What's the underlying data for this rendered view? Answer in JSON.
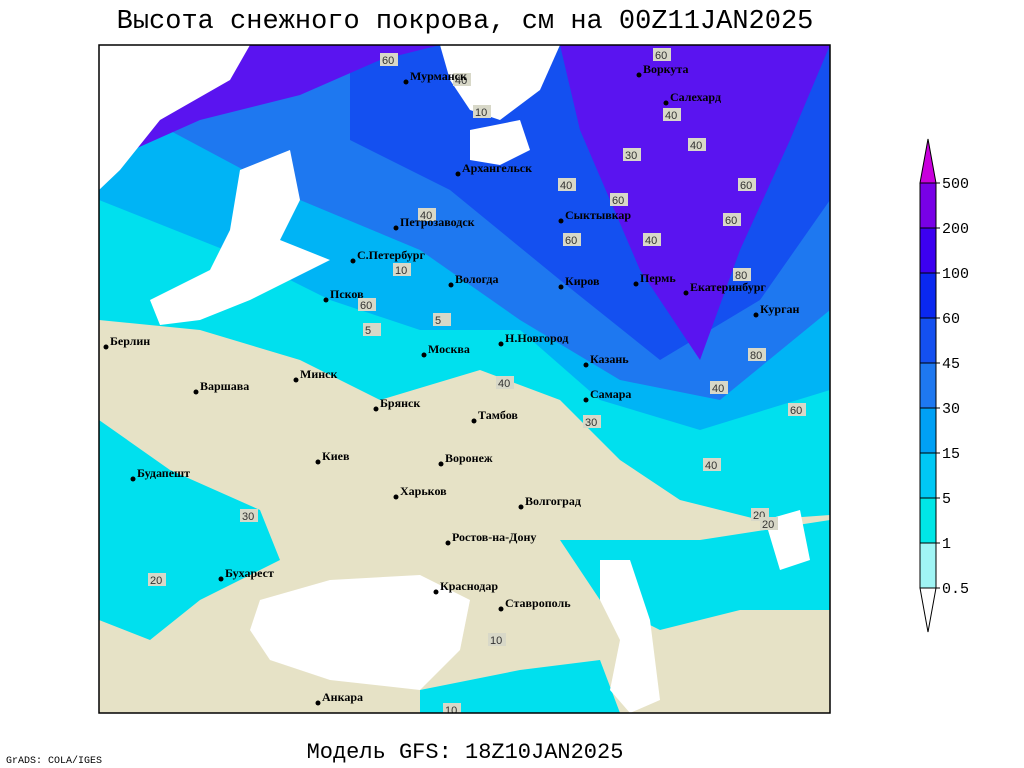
{
  "header": {
    "title": "Высота снежного покрова, см на 00Z11JAN2025"
  },
  "footer": {
    "model": "Модель GFS: 18Z10JAN2025",
    "credit": "GrADS: COLA/IGES"
  },
  "cities": [
    "Мурманск",
    "Воркута",
    "Салехард",
    "Архангельск",
    "Петрозаводск",
    "Сыктывкар",
    "С.Петербург",
    "Вологда",
    "Киров",
    "Пермь",
    "Екатеринбург",
    "Псков",
    "Курган",
    "Н.Новгород",
    "Берлин",
    "Москва",
    "Казань",
    "Варшава",
    "Минск",
    "Брянск",
    "Самара",
    "Тамбов",
    "Киев",
    "Воронеж",
    "Будапешт",
    "Харьков",
    "Волгоград",
    "Ростов-на-Дону",
    "Бухарест",
    "Краснодар",
    "Ставрополь",
    "Анкара"
  ],
  "contour_labels": [
    60,
    40,
    60,
    40,
    60,
    40,
    30,
    40,
    60,
    40,
    40,
    60,
    80,
    60,
    60,
    80,
    40,
    60,
    40,
    30,
    40,
    20,
    30,
    20,
    20,
    10,
    10,
    5,
    5,
    10,
    10
  ],
  "legend": {
    "levels": [
      0.5,
      1,
      5,
      15,
      30,
      45,
      60,
      100,
      200,
      500
    ],
    "colors": [
      "#ffffff",
      "#a0f5f5",
      "#00e6e6",
      "#00c8f5",
      "#00a0f5",
      "#1e78f0",
      "#1450f0",
      "#0a28f0",
      "#3c00f0",
      "#7800e6",
      "#c800dc"
    ]
  }
}
